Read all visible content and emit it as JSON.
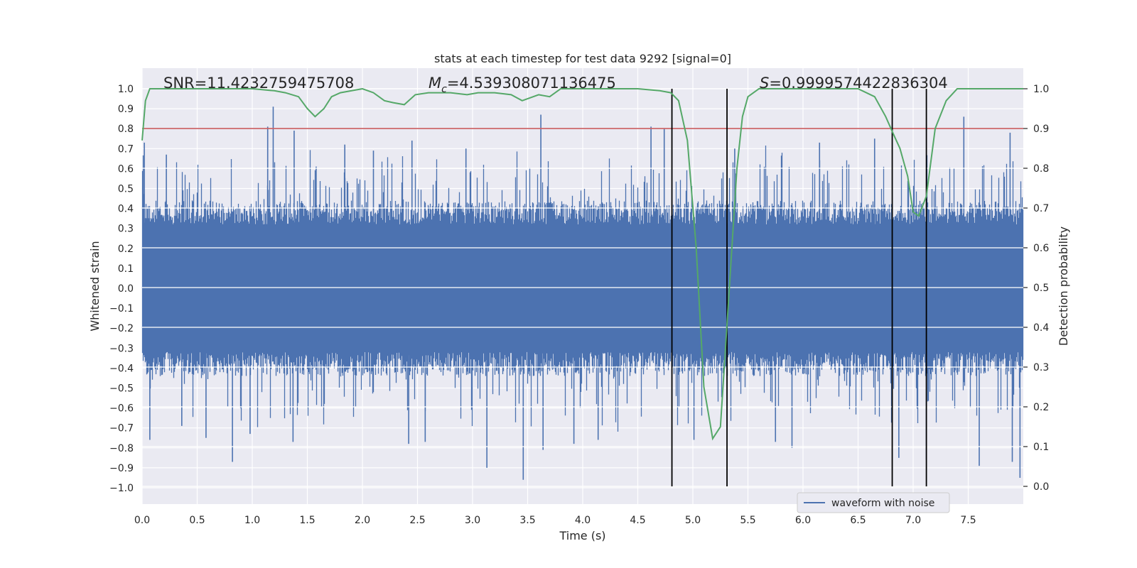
{
  "chart_data": {
    "type": "line",
    "title": "stats at each timestep for test data 9292 [signal=0]",
    "xlabel": "Time (s)",
    "ylabel_left": "Whitened strain",
    "ylabel_right": "Detection probability",
    "xlim": [
      0,
      8
    ],
    "ylim_left": [
      -1.05,
      1.08
    ],
    "ylim_right": [
      0.0,
      1.0
    ],
    "x_ticks": [
      "0.0",
      "0.5",
      "1.0",
      "1.5",
      "2.0",
      "2.5",
      "3.0",
      "3.5",
      "4.0",
      "4.5",
      "5.0",
      "5.5",
      "6.0",
      "6.5",
      "7.0",
      "7.5"
    ],
    "y_ticks_left": [
      "1.0",
      "0.9",
      "0.8",
      "0.7",
      "0.6",
      "0.5",
      "0.4",
      "0.3",
      "0.2",
      "0.1",
      "0.0",
      "-0.1",
      "-0.2",
      "-0.3",
      "-0.4",
      "-0.5",
      "-0.6",
      "-0.7",
      "-0.8",
      "-0.9",
      "-1.0"
    ],
    "y_ticks_right": [
      "1.0",
      "0.9",
      "0.8",
      "0.7",
      "0.6",
      "0.5",
      "0.4",
      "0.3",
      "0.2",
      "0.1",
      "0.0"
    ],
    "annotations": {
      "snr": "SNR=11.4232759475708",
      "mc_symbol": "M",
      "mc_sub": "c",
      "mc_value": "=4.539308071136475",
      "s_symbol": "S",
      "s_value": "=0.9999574422836304"
    },
    "threshold": 0.9,
    "vertical_lines_s": [
      4.81,
      5.31,
      6.81,
      7.12
    ],
    "legend": [
      "waveform with noise"
    ],
    "series": [
      {
        "name": "waveform with noise",
        "color": "#4c72b0",
        "axis": "left",
        "envelope_description": "dense noise, mostly within -0.4..0.4 with spikes",
        "spikes": [
          {
            "x": 0.02,
            "v": 0.73
          },
          {
            "x": 0.07,
            "v": -0.76
          },
          {
            "x": 0.22,
            "v": 0.67
          },
          {
            "x": 0.36,
            "v": -0.69
          },
          {
            "x": 0.58,
            "v": -0.75
          },
          {
            "x": 0.82,
            "v": -0.87
          },
          {
            "x": 0.98,
            "v": -0.73
          },
          {
            "x": 1.04,
            "v": -0.13
          },
          {
            "x": 1.14,
            "v": 0.81
          },
          {
            "x": 1.19,
            "v": 0.91
          },
          {
            "x": 1.38,
            "v": 0.79
          },
          {
            "x": 1.37,
            "v": -0.77
          },
          {
            "x": 1.58,
            "v": 0.61
          },
          {
            "x": 1.84,
            "v": 0.72
          },
          {
            "x": 2.1,
            "v": 0.69
          },
          {
            "x": 2.42,
            "v": -0.78
          },
          {
            "x": 2.45,
            "v": 0.74
          },
          {
            "x": 2.57,
            "v": -0.77
          },
          {
            "x": 2.94,
            "v": 0.7
          },
          {
            "x": 3.13,
            "v": -0.9
          },
          {
            "x": 3.46,
            "v": -0.96
          },
          {
            "x": 3.62,
            "v": 0.87
          },
          {
            "x": 3.64,
            "v": -0.81
          },
          {
            "x": 3.92,
            "v": -0.78
          },
          {
            "x": 4.14,
            "v": -0.76
          },
          {
            "x": 4.62,
            "v": 0.81
          },
          {
            "x": 4.74,
            "v": 0.8
          },
          {
            "x": 5.01,
            "v": -0.76
          },
          {
            "x": 5.38,
            "v": 0.7
          },
          {
            "x": 5.75,
            "v": -0.77
          },
          {
            "x": 5.9,
            "v": -0.8
          },
          {
            "x": 6.15,
            "v": 0.73
          },
          {
            "x": 6.65,
            "v": 0.75
          },
          {
            "x": 6.87,
            "v": -0.85
          },
          {
            "x": 7.12,
            "v": -0.86
          },
          {
            "x": 7.46,
            "v": 0.86
          },
          {
            "x": 7.6,
            "v": -0.89
          },
          {
            "x": 7.88,
            "v": 0.78
          },
          {
            "x": 7.9,
            "v": -0.87
          },
          {
            "x": 7.97,
            "v": -0.95
          }
        ]
      },
      {
        "name": "detection probability",
        "color": "#55a868",
        "axis": "right",
        "x": [
          0,
          0.03,
          0.07,
          0.2,
          0.5,
          1.0,
          1.2,
          1.3,
          1.42,
          1.5,
          1.57,
          1.65,
          1.72,
          1.8,
          2.0,
          2.1,
          2.2,
          2.28,
          2.38,
          2.48,
          2.6,
          2.8,
          2.95,
          3.05,
          3.2,
          3.35,
          3.45,
          3.6,
          3.7,
          3.8,
          4.0,
          4.5,
          4.7,
          4.8,
          4.87,
          4.95,
          5.03,
          5.1,
          5.18,
          5.25,
          5.32,
          5.4,
          5.45,
          5.5,
          5.55,
          5.6,
          6.0,
          6.5,
          6.65,
          6.75,
          6.83,
          6.88,
          6.95,
          7.0,
          7.05,
          7.12,
          7.2,
          7.3,
          7.4,
          7.5,
          8.0
        ],
        "values": [
          0.87,
          0.97,
          1.0,
          1.0,
          1.0,
          1.0,
          0.995,
          0.99,
          0.98,
          0.95,
          0.93,
          0.95,
          0.98,
          0.99,
          1.0,
          0.99,
          0.97,
          0.965,
          0.96,
          0.985,
          0.99,
          0.99,
          0.985,
          0.99,
          0.99,
          0.985,
          0.97,
          0.985,
          0.98,
          1.0,
          1.0,
          1.0,
          0.995,
          0.99,
          0.97,
          0.87,
          0.6,
          0.25,
          0.12,
          0.15,
          0.45,
          0.8,
          0.93,
          0.98,
          0.99,
          1.0,
          1.0,
          1.0,
          0.98,
          0.93,
          0.88,
          0.85,
          0.78,
          0.69,
          0.68,
          0.73,
          0.9,
          0.97,
          1.0,
          1.0,
          1.0
        ]
      },
      {
        "name": "threshold",
        "color": "#c44e52",
        "axis": "right",
        "x": [
          0,
          8
        ],
        "values": [
          0.9,
          0.9
        ]
      }
    ]
  }
}
